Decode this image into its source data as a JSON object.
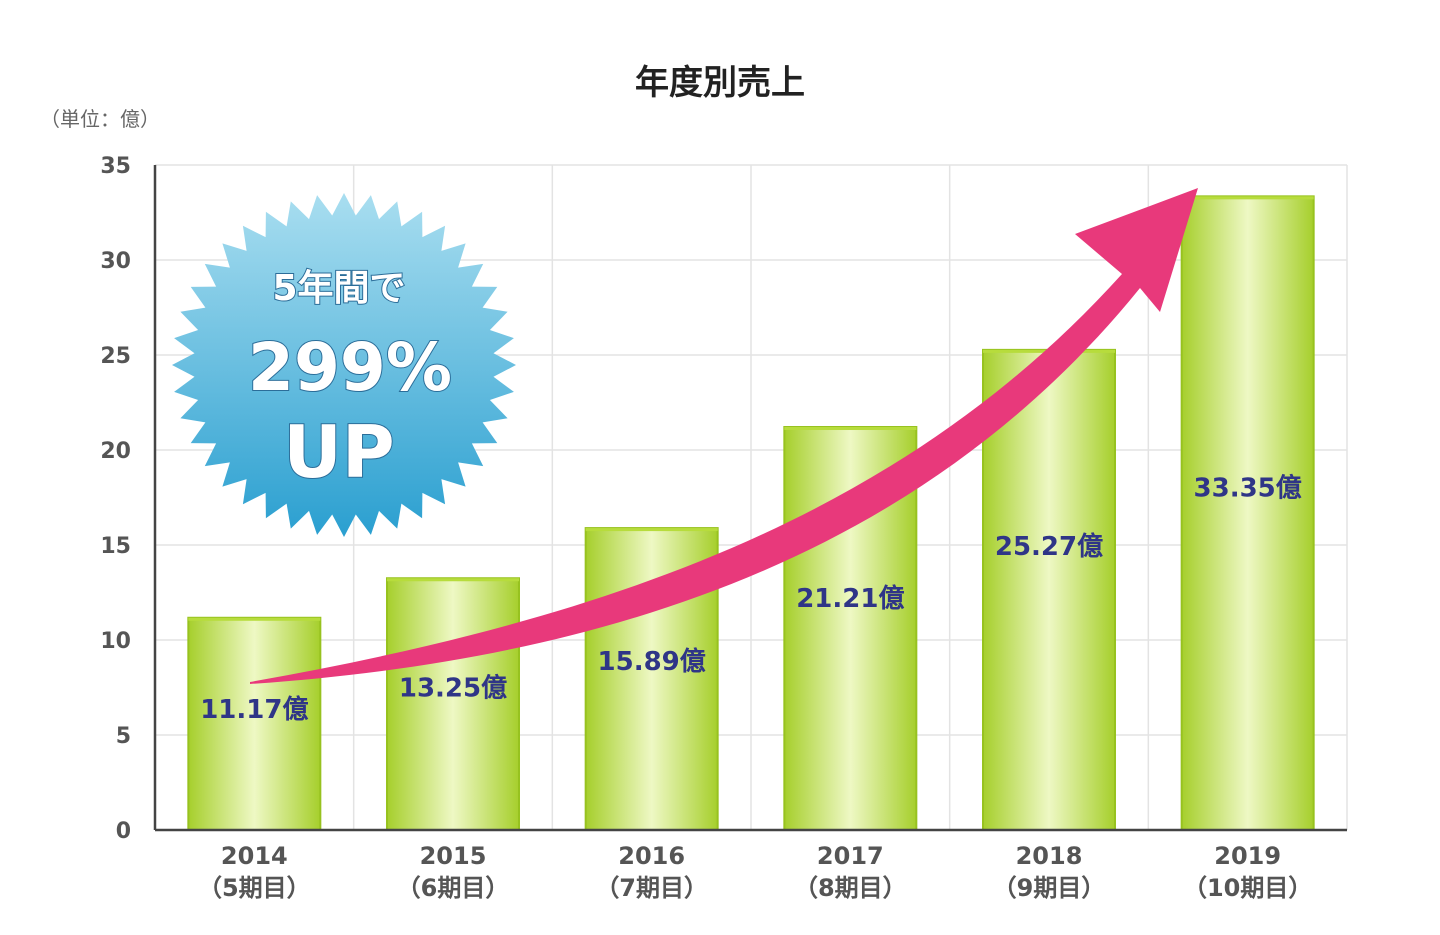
{
  "chart_data": {
    "type": "bar",
    "title": "年度別売上",
    "unit_label": "（単位：億）",
    "categories": [
      "2014",
      "2015",
      "2016",
      "2017",
      "2018",
      "2019"
    ],
    "period_labels": [
      "（5期目）",
      "（6期目）",
      "（7期目）",
      "（8期目）",
      "（9期目）",
      "（10期目）"
    ],
    "values": [
      11.17,
      13.25,
      15.89,
      21.21,
      25.27,
      33.35
    ],
    "value_labels": [
      "11.17億",
      "13.25億",
      "15.89億",
      "21.21億",
      "25.27億",
      "33.35億"
    ],
    "ylim": [
      0,
      35
    ],
    "yticks": [
      0,
      5,
      10,
      15,
      20,
      25,
      30,
      35
    ],
    "grid": true,
    "bar_color": "#b7dc3c",
    "bar_highlight": "#eef8c4",
    "arrow_color": "#e8397b",
    "badge": {
      "line1": "5年間で",
      "line2": "299%",
      "line3": "UP",
      "color_top": "#a9def0",
      "color_bottom": "#2a9fd0"
    }
  }
}
